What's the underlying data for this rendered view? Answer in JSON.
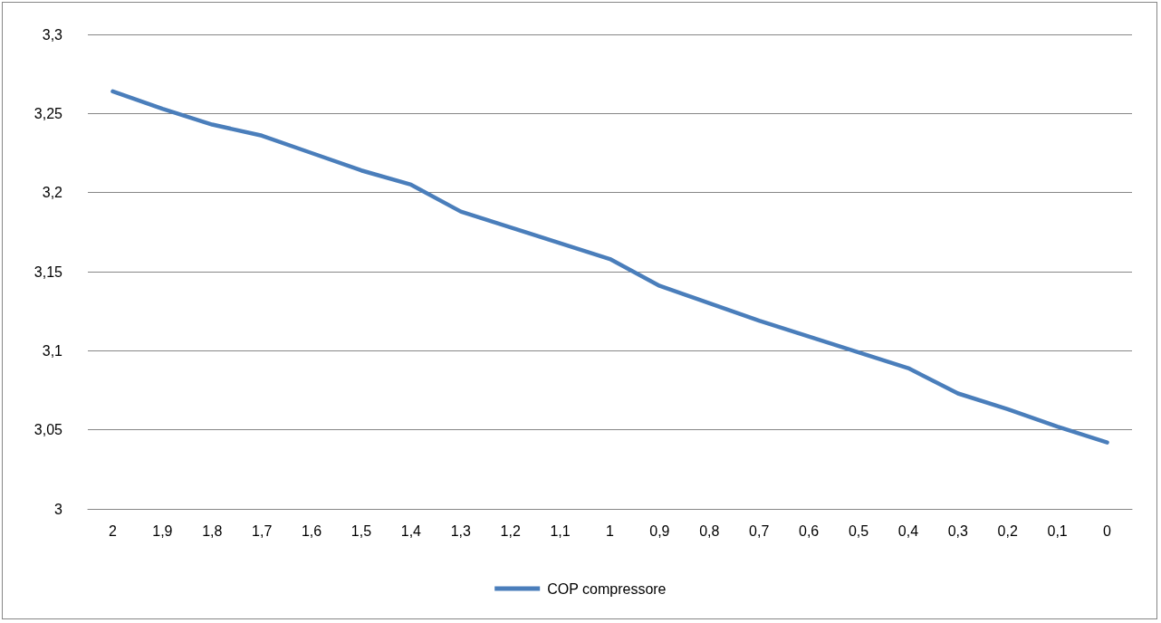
{
  "chart_data": {
    "type": "line",
    "categories": [
      "2",
      "1,9",
      "1,8",
      "1,7",
      "1,6",
      "1,5",
      "1,4",
      "1,3",
      "1,2",
      "1,1",
      "1",
      "0,9",
      "0,8",
      "0,7",
      "0,6",
      "0,5",
      "0,4",
      "0,3",
      "0,2",
      "0,1",
      "0"
    ],
    "series": [
      {
        "name": "COP compressore",
        "color": "#4a7ebb",
        "values": [
          3.264,
          3.253,
          3.243,
          3.236,
          3.225,
          3.214,
          3.205,
          3.188,
          3.178,
          3.168,
          3.158,
          3.141,
          3.13,
          3.119,
          3.109,
          3.099,
          3.089,
          3.073,
          3.063,
          3.052,
          3.042
        ]
      }
    ],
    "ylim": [
      3,
      3.3
    ],
    "yticks": [
      {
        "value": 3,
        "label": "3"
      },
      {
        "value": 3.05,
        "label": "3,05"
      },
      {
        "value": 3.1,
        "label": "3,1"
      },
      {
        "value": 3.15,
        "label": "3,15"
      },
      {
        "value": 3.2,
        "label": "3,2"
      },
      {
        "value": 3.25,
        "label": "3,25"
      },
      {
        "value": 3.3,
        "label": "3,3"
      }
    ],
    "grid": "y",
    "legend": "bottom",
    "marker": "none",
    "line_style": "solid"
  }
}
